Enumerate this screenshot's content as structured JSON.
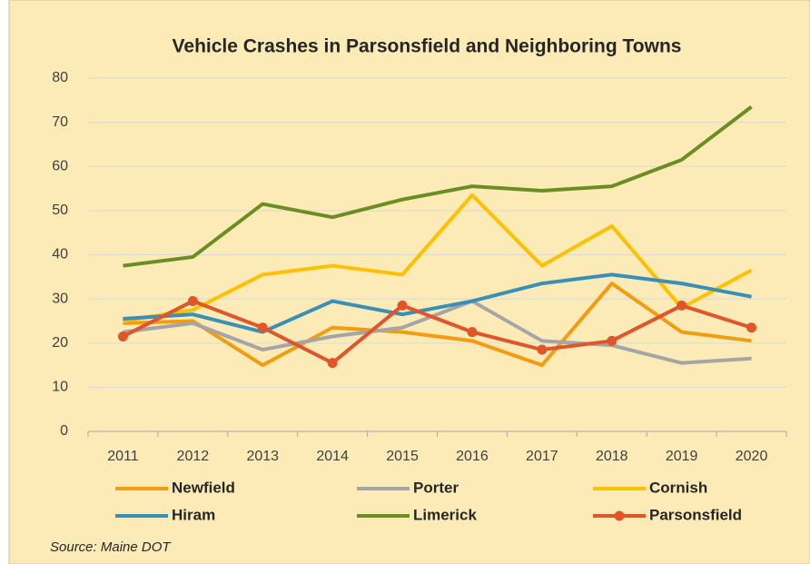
{
  "chart_data": {
    "type": "line",
    "title": "Vehicle Crashes in Parsonsfield and Neighboring Towns",
    "source": "Source: Maine DOT",
    "categories": [
      "2011",
      "2012",
      "2013",
      "2014",
      "2015",
      "2016",
      "2017",
      "2018",
      "2019",
      "2020"
    ],
    "series": [
      {
        "name": "Newfield",
        "color": "#f39c12",
        "values": [
          24.5,
          25,
          15,
          23.5,
          22.5,
          20.5,
          15,
          33.5,
          22.5,
          20.5
        ]
      },
      {
        "name": "Porter",
        "color": "#a5a5a5",
        "values": [
          22.5,
          24.5,
          18.5,
          21.5,
          23.5,
          29.5,
          20.5,
          19.5,
          15.5,
          16.5
        ]
      },
      {
        "name": "Cornish",
        "color": "#ffc000",
        "values": [
          25,
          27.5,
          35.5,
          37.5,
          35.5,
          53.5,
          37.5,
          46.5,
          28,
          36.5
        ]
      },
      {
        "name": "Hiram",
        "color": "#3a8fb7",
        "values": [
          25.5,
          26.5,
          22.5,
          29.5,
          26.5,
          29.5,
          33.5,
          35.5,
          33.5,
          30.5
        ]
      },
      {
        "name": "Limerick",
        "color": "#6b8e23",
        "values": [
          37.5,
          39.5,
          51.5,
          48.5,
          52.5,
          55.5,
          54.5,
          55.5,
          61.5,
          73.5
        ]
      },
      {
        "name": "Parsonsfield",
        "color": "#e0552a",
        "markers": true,
        "values": [
          21.5,
          29.5,
          23.5,
          15.5,
          28.5,
          22.5,
          18.5,
          20.5,
          28.5,
          23.5
        ]
      }
    ],
    "ylim": [
      0,
      80
    ],
    "yticks": [
      0,
      10,
      20,
      30,
      40,
      50,
      60,
      70,
      80
    ],
    "grid": true,
    "legend": "bottom"
  }
}
